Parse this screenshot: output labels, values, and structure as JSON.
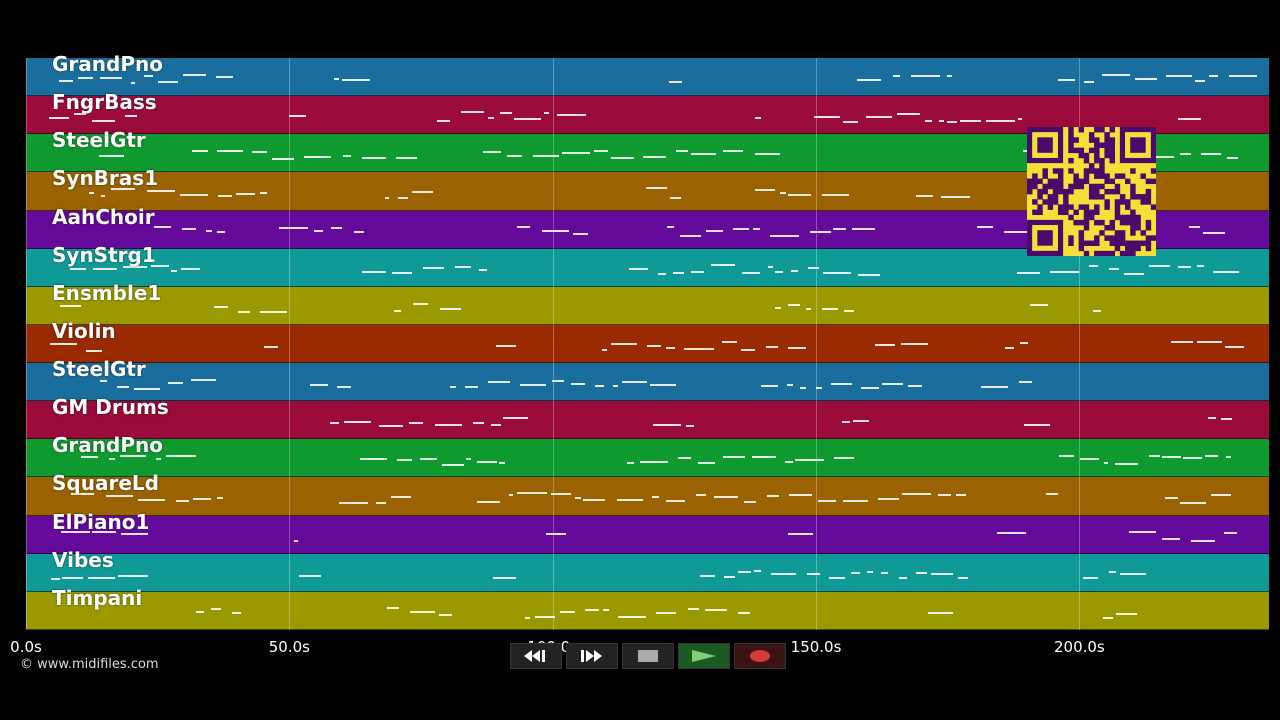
{
  "tracks": [
    {
      "name": "GrandPno",
      "color": "#1a6e9e"
    },
    {
      "name": "FngrBass",
      "color": "#9a0a3a"
    },
    {
      "name": "SteelGtr",
      "color": "#0f9a2f"
    },
    {
      "name": "SynBras1",
      "color": "#9a6200"
    },
    {
      "name": "AahChoir",
      "color": "#640a9a"
    },
    {
      "name": "SynStrg1",
      "color": "#0f9a98"
    },
    {
      "name": "Ensmble1",
      "color": "#9a9a00"
    },
    {
      "name": "Violin",
      "color": "#9a2a00"
    },
    {
      "name": "SteelGtr",
      "color": "#1a6e9e"
    },
    {
      "name": "GM Drums",
      "color": "#9a0a3a"
    },
    {
      "name": "GrandPno",
      "color": "#0f9a2f"
    },
    {
      "name": "SquareLd",
      "color": "#9a6200"
    },
    {
      "name": "ElPiano1",
      "color": "#640a9a"
    },
    {
      "name": "Vibes",
      "color": "#0f9a98"
    },
    {
      "name": "Timpani",
      "color": "#9a9a00"
    }
  ],
  "timeline": {
    "unit": "s",
    "range": [
      0,
      236
    ],
    "ticks": [
      {
        "value": 0,
        "label": "0.0s"
      },
      {
        "value": 50,
        "label": "50.0s"
      },
      {
        "value": 100,
        "label": "100.0s"
      },
      {
        "value": 150,
        "label": "150.0s"
      },
      {
        "value": 200,
        "label": "200.0s"
      }
    ]
  },
  "credit": "© www.midifiles.com",
  "transport": [
    {
      "name": "rewind",
      "icon": "rewind-icon"
    },
    {
      "name": "fast-forward",
      "icon": "fast-forward-icon"
    },
    {
      "name": "stop",
      "icon": "stop-icon"
    },
    {
      "name": "play",
      "icon": "play-icon"
    },
    {
      "name": "record",
      "icon": "record-icon"
    }
  ]
}
